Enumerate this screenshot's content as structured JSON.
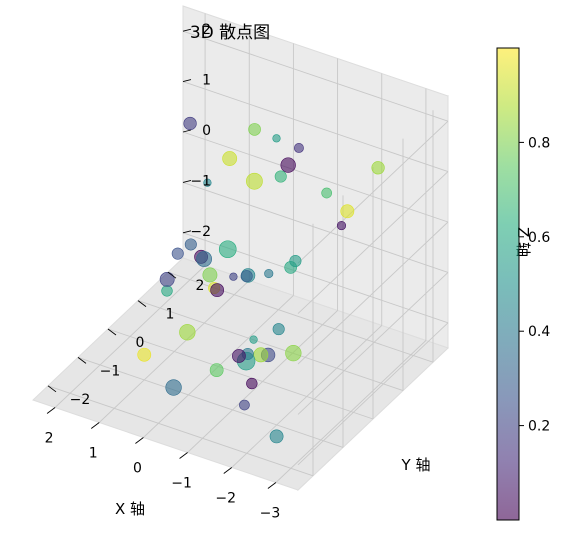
{
  "chart_data": {
    "type": "scatter",
    "projection": "3d",
    "title": "3D 散点图",
    "xlabel": "X 轴",
    "ylabel": "Y 轴",
    "zlabel": "Z 轴",
    "xlim": [
      -3.5,
      2.5
    ],
    "ylim": [
      -2.5,
      2.5
    ],
    "zlim": [
      -2.5,
      2.5
    ],
    "xticks": [
      "−3",
      "−2",
      "−1",
      "0",
      "1",
      "2"
    ],
    "yticks": [
      "−2",
      "−1",
      "0",
      "1",
      "2"
    ],
    "zticks": [
      "−2",
      "−1",
      "0",
      "1",
      "2"
    ],
    "grid": true,
    "colormap": "viridis",
    "alpha": 0.6,
    "colorbar": {
      "range": [
        0.0,
        1.0
      ],
      "ticks": [
        "0.2",
        "0.4",
        "0.6",
        "0.8"
      ],
      "position": "right"
    },
    "points": [
      {
        "x": -2.8,
        "y": 1.2,
        "z": 1.6,
        "c": 0.85,
        "s": 55
      },
      {
        "x": -0.6,
        "y": 1.8,
        "z": 1.0,
        "c": 0.15,
        "s": 30
      },
      {
        "x": -1.9,
        "y": 1.5,
        "z": 0.3,
        "c": 0.95,
        "s": 60
      },
      {
        "x": -1.7,
        "y": 1.6,
        "z": -0.1,
        "c": 0.05,
        "s": 25
      },
      {
        "x": -1.5,
        "y": 1.4,
        "z": 0.6,
        "c": 0.7,
        "s": 35
      },
      {
        "x": -0.9,
        "y": 1.0,
        "z": 1.2,
        "c": 0.02,
        "s": 75
      },
      {
        "x": -0.5,
        "y": 1.2,
        "z": 1.5,
        "c": 0.55,
        "s": 20
      },
      {
        "x": -0.8,
        "y": 0.9,
        "z": 1.0,
        "c": 0.65,
        "s": 45
      },
      {
        "x": 0.2,
        "y": 1.5,
        "z": 1.3,
        "c": 0.8,
        "s": 50
      },
      {
        "x": 0.0,
        "y": 1.2,
        "z": 0.5,
        "c": 0.9,
        "s": 90
      },
      {
        "x": 0.9,
        "y": 1.7,
        "z": 0.4,
        "c": 0.92,
        "s": 70
      },
      {
        "x": 1.2,
        "y": 1.4,
        "z": 0.0,
        "c": 0.45,
        "s": 20
      },
      {
        "x": 2.0,
        "y": 2.0,
        "z": 0.6,
        "c": 0.18,
        "s": 55
      },
      {
        "x": -1.2,
        "y": 0.8,
        "z": -0.5,
        "c": 0.55,
        "s": 45
      },
      {
        "x": -1.5,
        "y": 0.2,
        "z": -0.2,
        "c": 0.6,
        "s": 50
      },
      {
        "x": -0.8,
        "y": 0.5,
        "z": -0.7,
        "c": 0.4,
        "s": 25
      },
      {
        "x": -0.4,
        "y": 0.4,
        "z": -0.8,
        "c": 0.45,
        "s": 65
      },
      {
        "x": -0.3,
        "y": 0.5,
        "z": -0.9,
        "c": 0.3,
        "s": 45
      },
      {
        "x": 0.0,
        "y": 0.5,
        "z": -1.0,
        "c": 0.2,
        "s": 20
      },
      {
        "x": 0.4,
        "y": 0.9,
        "z": -0.8,
        "c": 0.62,
        "s": 100
      },
      {
        "x": 0.3,
        "y": 0.3,
        "z": -1.2,
        "c": 0.95,
        "s": 45
      },
      {
        "x": 0.8,
        "y": 0.6,
        "z": -0.9,
        "c": 0.02,
        "s": 60
      },
      {
        "x": 0.8,
        "y": 0.7,
        "z": -1.0,
        "c": 0.35,
        "s": 80
      },
      {
        "x": 0.6,
        "y": 0.6,
        "z": -1.2,
        "c": 0.8,
        "s": 70
      },
      {
        "x": 0.3,
        "y": 0.4,
        "z": -1.3,
        "c": 0.03,
        "s": 60
      },
      {
        "x": 1.1,
        "y": 0.7,
        "z": -0.8,
        "c": 0.3,
        "s": 45
      },
      {
        "x": 1.3,
        "y": 0.2,
        "z": -1.5,
        "c": 0.6,
        "s": 40
      },
      {
        "x": 1.5,
        "y": 0.5,
        "z": -1.5,
        "c": 0.2,
        "s": 70
      },
      {
        "x": 1.6,
        "y": 1.0,
        "z": -1.3,
        "c": 0.25,
        "s": 45
      },
      {
        "x": -1.9,
        "y": -0.3,
        "z": -1.5,
        "c": 0.82,
        "s": 85
      },
      {
        "x": -1.5,
        "y": -0.2,
        "z": -1.2,
        "c": 0.45,
        "s": 45
      },
      {
        "x": -1.6,
        "y": -0.7,
        "z": -1.4,
        "c": 0.22,
        "s": 65
      },
      {
        "x": -1.3,
        "y": -0.5,
        "z": -1.6,
        "c": 0.85,
        "s": 70
      },
      {
        "x": -1.0,
        "y": -0.3,
        "z": -1.5,
        "c": 0.55,
        "s": 20
      },
      {
        "x": -0.9,
        "y": -0.4,
        "z": -1.9,
        "c": 0.55,
        "s": 110
      },
      {
        "x": -0.8,
        "y": -0.2,
        "z": -1.9,
        "c": 0.4,
        "s": 45
      },
      {
        "x": -0.6,
        "y": -0.2,
        "z": -2.0,
        "c": 0.05,
        "s": 60
      },
      {
        "x": -1.3,
        "y": -0.8,
        "z": -2.0,
        "c": 0.02,
        "s": 40
      },
      {
        "x": -1.2,
        "y": -0.9,
        "z": -2.4,
        "c": 0.2,
        "s": 35
      },
      {
        "x": -0.3,
        "y": -0.5,
        "z": -2.2,
        "c": 0.75,
        "s": 60
      },
      {
        "x": 0.5,
        "y": -0.3,
        "z": -1.8,
        "c": 0.85,
        "s": 85
      },
      {
        "x": -2.2,
        "y": -1.3,
        "z": -2.5,
        "c": 0.45,
        "s": 60
      },
      {
        "x": 0.2,
        "y": -1.2,
        "z": -2.3,
        "c": 0.35,
        "s": 85
      },
      {
        "x": 1.0,
        "y": -1.0,
        "z": -2.0,
        "c": 0.97,
        "s": 60
      }
    ]
  }
}
